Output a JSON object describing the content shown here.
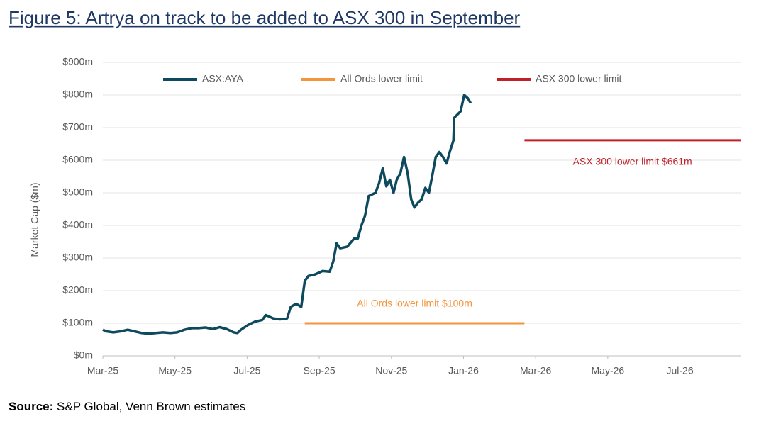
{
  "chart_data": {
    "type": "line",
    "title": "Figure 5: Artrya on track to be added to ASX 300 in September",
    "ylabel": "Market Cap ($m)",
    "source_label": "Source:",
    "source": "S&P Global, Venn Brown estimates",
    "xlim": [
      0,
      17.7
    ],
    "xticks": [
      {
        "value": 0,
        "label": "Mar-25"
      },
      {
        "value": 2,
        "label": "May-25"
      },
      {
        "value": 4,
        "label": "Jul-25"
      },
      {
        "value": 6,
        "label": "Sep-25"
      },
      {
        "value": 8,
        "label": "Nov-25"
      },
      {
        "value": 10,
        "label": "Jan-26"
      },
      {
        "value": 12,
        "label": "Mar-26"
      },
      {
        "value": 14,
        "label": "May-26"
      },
      {
        "value": 16,
        "label": "Jul-26"
      }
    ],
    "ylim": [
      0,
      900
    ],
    "yticks": [
      {
        "value": 0,
        "label": "$0m"
      },
      {
        "value": 100,
        "label": "$100m"
      },
      {
        "value": 200,
        "label": "$200m"
      },
      {
        "value": 300,
        "label": "$300m"
      },
      {
        "value": 400,
        "label": "$400m"
      },
      {
        "value": 500,
        "label": "$500m"
      },
      {
        "value": 600,
        "label": "$600m"
      },
      {
        "value": 700,
        "label": "$700m"
      },
      {
        "value": 800,
        "label": "$800m"
      },
      {
        "value": 900,
        "label": "$900m"
      }
    ],
    "grid": true,
    "legend": "top",
    "series": [
      {
        "name": "ASX:AYA",
        "color": "#0e4a5e",
        "x": [
          0,
          0.1,
          0.29,
          0.49,
          0.69,
          0.88,
          1.08,
          1.28,
          1.47,
          1.67,
          1.87,
          2.06,
          2.26,
          2.46,
          2.65,
          2.85,
          3.05,
          3.24,
          3.44,
          3.63,
          3.73,
          3.83,
          4.03,
          4.22,
          4.42,
          4.52,
          4.72,
          4.91,
          5.11,
          5.21,
          5.36,
          5.5,
          5.6,
          5.7,
          5.89,
          6.09,
          6.29,
          6.39,
          6.48,
          6.58,
          6.78,
          6.97,
          7.07,
          7.17,
          7.27,
          7.37,
          7.56,
          7.66,
          7.76,
          7.86,
          7.96,
          8.06,
          8.15,
          8.25,
          8.35,
          8.45,
          8.55,
          8.64,
          8.74,
          8.84,
          8.94,
          9.04,
          9.13,
          9.23,
          9.33,
          9.43,
          9.53,
          9.63,
          9.72,
          9.74,
          9.92,
          10.02,
          10.12,
          10.2
        ],
        "values": [
          80,
          75,
          72,
          75,
          80,
          75,
          70,
          68,
          70,
          72,
          70,
          72,
          80,
          85,
          85,
          87,
          82,
          88,
          82,
          72,
          70,
          80,
          95,
          105,
          110,
          125,
          115,
          112,
          115,
          150,
          160,
          150,
          230,
          245,
          250,
          260,
          258,
          290,
          345,
          330,
          335,
          360,
          360,
          400,
          430,
          490,
          500,
          530,
          575,
          520,
          540,
          500,
          540,
          560,
          610,
          560,
          480,
          455,
          470,
          480,
          515,
          500,
          550,
          610,
          625,
          610,
          590,
          630,
          660,
          730,
          750,
          800,
          790,
          775
        ]
      },
      {
        "name": "All Ords lower limit",
        "color": "#f4943c",
        "x": [
          5.6,
          11.69
        ],
        "values": [
          100,
          100
        ]
      },
      {
        "name": "ASX 300 lower limit",
        "color": "#c0202a",
        "x": [
          11.69,
          17.68
        ],
        "values": [
          661,
          661
        ]
      }
    ],
    "annotations": [
      {
        "text": "All Ords lower limit $100m",
        "series": 1
      },
      {
        "text": "ASX 300 lower limit $661m",
        "series": 2
      }
    ]
  }
}
